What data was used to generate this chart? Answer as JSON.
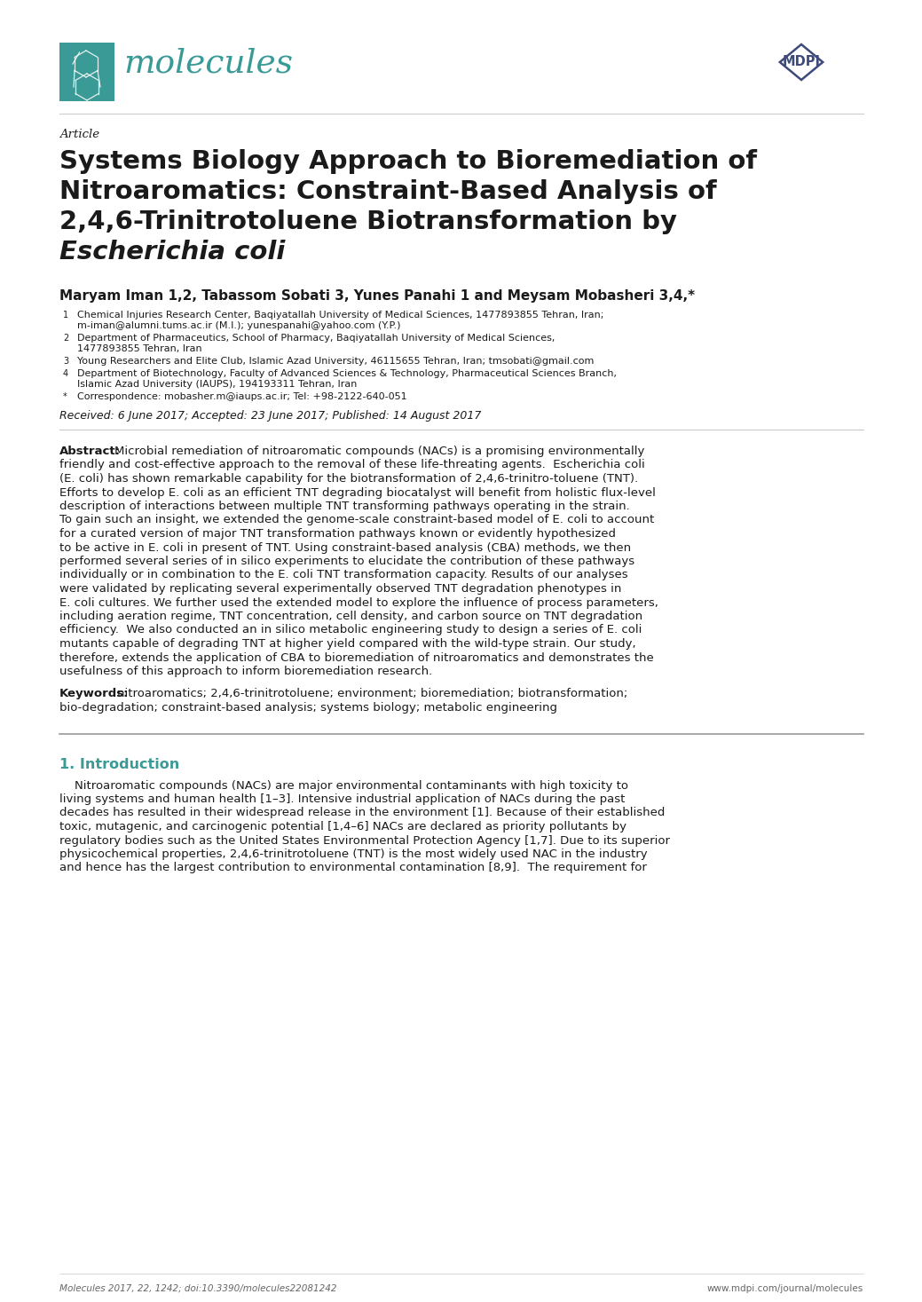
{
  "bg_color": "#ffffff",
  "page_width": 10.2,
  "page_height": 14.42,
  "teal_color": "#3a9a96",
  "navy_color": "#2d3561",
  "text_color": "#1a1a1a",
  "gray_color": "#666666",
  "light_gray": "#aaaaaa",
  "journal_name": "molecules",
  "journal_name_color": "#3a9a96",
  "article_label": "Article",
  "title_lines": [
    "Systems Biology Approach to Bioremediation of",
    "Nitroaromatics: Constraint-Based Analysis of",
    "2,4,6-Trinitrotoluene Biotransformation by"
  ],
  "title_italic": "Escherichia coli",
  "author_line": "Maryam Iman 1,2, Tabassom Sobati 3, Yunes Panahi 1 and Meysam Mobasheri 3,4,*",
  "affiliations": [
    [
      "1",
      "Chemical Injuries Research Center, Baqiyatallah University of Medical Sciences, 1477893855 Tehran, Iran;",
      "m-iman@alumni.tums.ac.ir (M.I.); yunespanahi@yahoo.com (Y.P.)"
    ],
    [
      "2",
      "Department of Pharmaceutics, School of Pharmacy, Baqiyatallah University of Medical Sciences,",
      "1477893855 Tehran, Iran"
    ],
    [
      "3",
      "Young Researchers and Elite Club, Islamic Azad University, 46115655 Tehran, Iran; tmsobati@gmail.com",
      ""
    ],
    [
      "4",
      "Department of Biotechnology, Faculty of Advanced Sciences & Technology, Pharmaceutical Sciences Branch,",
      "Islamic Azad University (IAUPS), 194193311 Tehran, Iran"
    ],
    [
      "*",
      "Correspondence: mobasher.m@iaups.ac.ir; Tel: +98-2122-640-051",
      ""
    ]
  ],
  "received": "Received: 6 June 2017; Accepted: 23 June 2017; Published: 14 August 2017",
  "abstract_lines": [
    "Microbial remediation of nitroaromatic compounds (NACs) is a promising environmentally",
    "friendly and cost-effective approach to the removal of these life-threating agents.  Escherichia coli",
    "(E. coli) has shown remarkable capability for the biotransformation of 2,4,6-trinitro-toluene (TNT).",
    "Efforts to develop E. coli as an efficient TNT degrading biocatalyst will benefit from holistic flux-level",
    "description of interactions between multiple TNT transforming pathways operating in the strain.",
    "To gain such an insight, we extended the genome-scale constraint-based model of E. coli to account",
    "for a curated version of major TNT transformation pathways known or evidently hypothesized",
    "to be active in E. coli in present of TNT. Using constraint-based analysis (CBA) methods, we then",
    "performed several series of in silico experiments to elucidate the contribution of these pathways",
    "individually or in combination to the E. coli TNT transformation capacity. Results of our analyses",
    "were validated by replicating several experimentally observed TNT degradation phenotypes in",
    "E. coli cultures. We further used the extended model to explore the influence of process parameters,",
    "including aeration regime, TNT concentration, cell density, and carbon source on TNT degradation",
    "efficiency.  We also conducted an in silico metabolic engineering study to design a series of E. coli",
    "mutants capable of degrading TNT at higher yield compared with the wild-type strain. Our study,",
    "therefore, extends the application of CBA to bioremediation of nitroaromatics and demonstrates the",
    "usefulness of this approach to inform bioremediation research."
  ],
  "keywords_line1": "nitroaromatics; 2,4,6-trinitrotoluene; environment; bioremediation; biotransformation;",
  "keywords_line2": "bio-degradation; constraint-based analysis; systems biology; metabolic engineering",
  "section1_title": "1. Introduction",
  "intro_lines": [
    "    Nitroaromatic compounds (NACs) are major environmental contaminants with high toxicity to",
    "living systems and human health [1–3]. Intensive industrial application of NACs during the past",
    "decades has resulted in their widespread release in the environment [1]. Because of their established",
    "toxic, mutagenic, and carcinogenic potential [1,4–6] NACs are declared as priority pollutants by",
    "regulatory bodies such as the United States Environmental Protection Agency [1,7]. Due to its superior",
    "physicochemical properties, 2,4,6-trinitrotoluene (TNT) is the most widely used NAC in the industry",
    "and hence has the largest contribution to environmental contamination [8,9].  The requirement for"
  ],
  "footer_left": "Molecules 2017, 22, 1242; doi:10.3390/molecules22081242",
  "footer_right": "www.mdpi.com/journal/molecules"
}
